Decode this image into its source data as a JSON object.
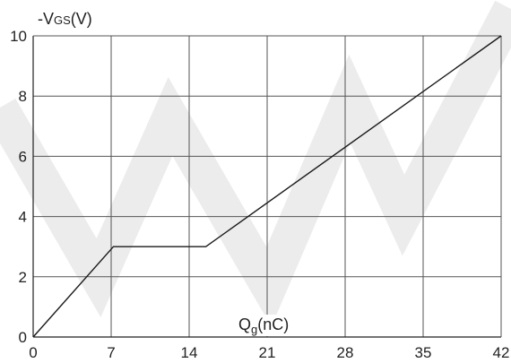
{
  "chart_data": {
    "type": "line",
    "title": "",
    "ylabel": {
      "prefix": "-V",
      "sub": "GS",
      "suffix": "(V)"
    },
    "xlabel": {
      "prefix": "Q",
      "sub": "g",
      "suffix": "(nC)"
    },
    "xlim": [
      0,
      42
    ],
    "ylim": [
      0,
      10
    ],
    "xticks": [
      0,
      7,
      14,
      21,
      28,
      35,
      42
    ],
    "yticks": [
      0,
      2,
      4,
      6,
      8,
      10
    ],
    "grid": true,
    "legend": "none",
    "series": [
      {
        "x": [
          0,
          7.2,
          15.5,
          42
        ],
        "y": [
          0,
          3.0,
          3.0,
          10.0
        ]
      }
    ],
    "colors": {
      "line": "#1a1a1a",
      "grid": "#555555",
      "axis": "#222222",
      "watermark": "#ececec"
    }
  }
}
